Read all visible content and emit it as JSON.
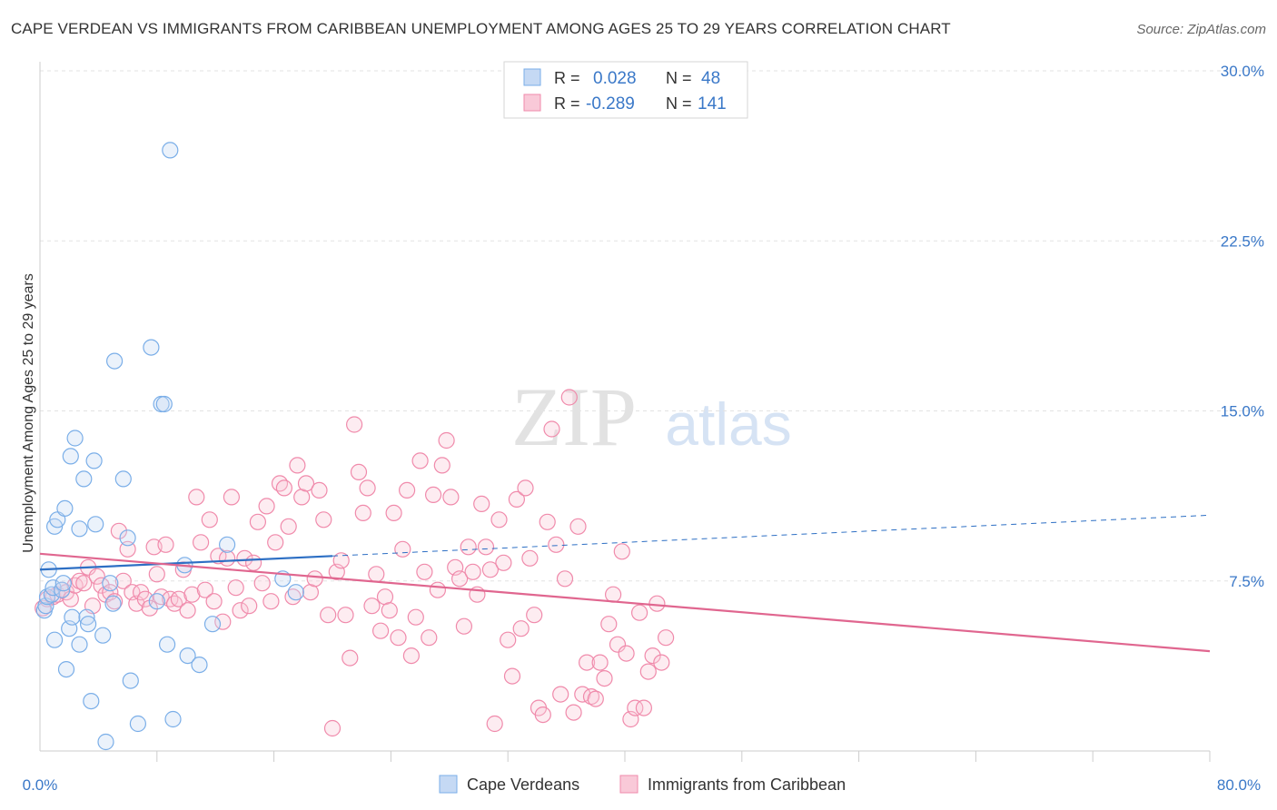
{
  "header": {
    "title": "CAPE VERDEAN VS IMMIGRANTS FROM CARIBBEAN UNEMPLOYMENT AMONG AGES 25 TO 29 YEARS CORRELATION CHART",
    "source": "Source: ZipAtlas.com"
  },
  "watermark": {
    "zip": "ZIP",
    "atlas": "atlas"
  },
  "stats": {
    "r_label": "R =",
    "n_label": "N =",
    "rows": [
      {
        "r": "0.028",
        "n": "48"
      },
      {
        "r": "-0.289",
        "n": "141"
      }
    ]
  },
  "chart_data": {
    "type": "scatter",
    "title": "CAPE VERDEAN VS IMMIGRANTS FROM CARIBBEAN UNEMPLOYMENT AMONG AGES 25 TO 29 YEARS CORRELATION CHART",
    "xlabel": "",
    "ylabel": "Unemployment Among Ages 25 to 29 years",
    "xlim": [
      0,
      80
    ],
    "ylim": [
      0,
      30
    ],
    "x_tick_labels": [
      "0.0%",
      "80.0%"
    ],
    "y_ticks": [
      7.5,
      15,
      22.5,
      30
    ],
    "y_tick_labels": [
      "7.5%",
      "15.0%",
      "22.5%",
      "30.0%"
    ],
    "grid": true,
    "legend_position": "bottom",
    "series": [
      {
        "name": "Cape Verdeans",
        "color": "#7aaee8",
        "trend": {
          "x0": 0,
          "y0": 8.0,
          "x1": 20,
          "y1": 8.6,
          "x2": 80,
          "y2": 10.4
        },
        "points": [
          [
            0.3,
            6.2
          ],
          [
            0.4,
            6.4
          ],
          [
            0.5,
            6.8
          ],
          [
            0.6,
            8.0
          ],
          [
            0.8,
            6.9
          ],
          [
            0.9,
            7.2
          ],
          [
            1.0,
            9.9
          ],
          [
            1.2,
            10.2
          ],
          [
            1.0,
            4.9
          ],
          [
            1.5,
            7.1
          ],
          [
            1.6,
            7.4
          ],
          [
            1.7,
            10.7
          ],
          [
            1.8,
            3.6
          ],
          [
            2.0,
            5.4
          ],
          [
            2.1,
            13.0
          ],
          [
            2.2,
            5.9
          ],
          [
            2.4,
            13.8
          ],
          [
            2.7,
            4.7
          ],
          [
            2.7,
            9.8
          ],
          [
            3.0,
            12.0
          ],
          [
            3.2,
            5.9
          ],
          [
            3.3,
            5.6
          ],
          [
            3.5,
            2.2
          ],
          [
            3.7,
            12.8
          ],
          [
            3.8,
            10.0
          ],
          [
            4.3,
            5.1
          ],
          [
            4.5,
            0.4
          ],
          [
            4.8,
            7.4
          ],
          [
            5.0,
            6.5
          ],
          [
            5.1,
            17.2
          ],
          [
            5.7,
            12.0
          ],
          [
            6.0,
            9.4
          ],
          [
            6.2,
            3.1
          ],
          [
            6.7,
            1.2
          ],
          [
            7.6,
            17.8
          ],
          [
            8.0,
            6.6
          ],
          [
            8.3,
            15.3
          ],
          [
            8.5,
            15.3
          ],
          [
            8.7,
            4.7
          ],
          [
            8.9,
            26.5
          ],
          [
            9.1,
            1.4
          ],
          [
            9.9,
            8.2
          ],
          [
            10.1,
            4.2
          ],
          [
            10.9,
            3.8
          ],
          [
            11.8,
            5.6
          ],
          [
            12.8,
            9.1
          ],
          [
            16.6,
            7.6
          ],
          [
            17.5,
            7.0
          ]
        ]
      },
      {
        "name": "Immigrants from Caribbean",
        "color": "#f08aab",
        "trend": {
          "x0": 0,
          "y0": 8.7,
          "x1": 80,
          "y1": 4.4
        },
        "points": [
          [
            0.2,
            6.3
          ],
          [
            0.5,
            6.7
          ],
          [
            0.9,
            6.8
          ],
          [
            1.2,
            6.9
          ],
          [
            1.5,
            7.1
          ],
          [
            1.8,
            7.0
          ],
          [
            2.1,
            6.7
          ],
          [
            2.4,
            7.3
          ],
          [
            2.7,
            7.5
          ],
          [
            3.0,
            7.4
          ],
          [
            3.3,
            8.1
          ],
          [
            3.6,
            6.4
          ],
          [
            3.9,
            7.7
          ],
          [
            4.2,
            7.3
          ],
          [
            4.5,
            6.9
          ],
          [
            4.8,
            7.0
          ],
          [
            5.1,
            6.6
          ],
          [
            5.4,
            9.7
          ],
          [
            5.7,
            7.5
          ],
          [
            6.0,
            8.9
          ],
          [
            6.3,
            7.0
          ],
          [
            6.6,
            6.5
          ],
          [
            6.9,
            7.0
          ],
          [
            7.2,
            6.7
          ],
          [
            7.5,
            6.3
          ],
          [
            7.8,
            9.0
          ],
          [
            8.0,
            7.8
          ],
          [
            8.3,
            6.8
          ],
          [
            8.6,
            9.1
          ],
          [
            8.9,
            6.7
          ],
          [
            9.2,
            6.5
          ],
          [
            9.5,
            6.7
          ],
          [
            9.8,
            8.0
          ],
          [
            10.1,
            6.2
          ],
          [
            10.4,
            6.9
          ],
          [
            10.7,
            11.2
          ],
          [
            11.0,
            9.2
          ],
          [
            11.3,
            7.1
          ],
          [
            11.6,
            10.2
          ],
          [
            11.9,
            6.6
          ],
          [
            12.2,
            8.6
          ],
          [
            12.5,
            5.7
          ],
          [
            12.8,
            8.5
          ],
          [
            13.1,
            11.2
          ],
          [
            13.4,
            7.2
          ],
          [
            13.7,
            6.2
          ],
          [
            14.0,
            8.5
          ],
          [
            14.3,
            6.4
          ],
          [
            14.6,
            8.3
          ],
          [
            14.9,
            10.1
          ],
          [
            15.2,
            7.4
          ],
          [
            15.5,
            10.8
          ],
          [
            15.8,
            6.6
          ],
          [
            16.1,
            9.2
          ],
          [
            16.4,
            11.8
          ],
          [
            16.7,
            11.6
          ],
          [
            17.0,
            9.9
          ],
          [
            17.3,
            6.8
          ],
          [
            17.6,
            12.6
          ],
          [
            17.9,
            11.2
          ],
          [
            18.2,
            11.8
          ],
          [
            18.5,
            7.0
          ],
          [
            18.8,
            7.6
          ],
          [
            19.1,
            11.5
          ],
          [
            19.4,
            10.2
          ],
          [
            19.7,
            6.0
          ],
          [
            20.0,
            1.0
          ],
          [
            20.3,
            7.9
          ],
          [
            20.6,
            8.4
          ],
          [
            20.9,
            6.0
          ],
          [
            21.2,
            4.1
          ],
          [
            21.5,
            14.4
          ],
          [
            21.8,
            12.3
          ],
          [
            22.1,
            10.5
          ],
          [
            22.4,
            11.6
          ],
          [
            22.7,
            6.4
          ],
          [
            23.0,
            7.8
          ],
          [
            23.3,
            5.3
          ],
          [
            23.6,
            6.8
          ],
          [
            23.9,
            6.2
          ],
          [
            24.2,
            10.5
          ],
          [
            24.5,
            5.0
          ],
          [
            24.8,
            8.9
          ],
          [
            25.1,
            11.5
          ],
          [
            25.4,
            4.2
          ],
          [
            25.7,
            5.9
          ],
          [
            26.0,
            12.8
          ],
          [
            26.3,
            7.9
          ],
          [
            26.6,
            5.0
          ],
          [
            26.9,
            11.3
          ],
          [
            27.2,
            7.1
          ],
          [
            27.5,
            12.6
          ],
          [
            27.8,
            13.7
          ],
          [
            28.1,
            11.2
          ],
          [
            28.4,
            8.1
          ],
          [
            28.7,
            7.6
          ],
          [
            29.0,
            5.5
          ],
          [
            29.3,
            9.0
          ],
          [
            29.6,
            7.9
          ],
          [
            29.9,
            6.9
          ],
          [
            30.2,
            10.9
          ],
          [
            30.5,
            9.0
          ],
          [
            30.8,
            8.0
          ],
          [
            31.1,
            1.2
          ],
          [
            31.4,
            10.2
          ],
          [
            31.7,
            8.3
          ],
          [
            32.0,
            4.9
          ],
          [
            32.3,
            3.3
          ],
          [
            32.6,
            11.1
          ],
          [
            32.9,
            5.4
          ],
          [
            33.2,
            11.6
          ],
          [
            33.5,
            8.5
          ],
          [
            33.8,
            6.0
          ],
          [
            34.1,
            1.9
          ],
          [
            34.4,
            1.6
          ],
          [
            34.7,
            10.1
          ],
          [
            35.0,
            14.2
          ],
          [
            35.3,
            9.1
          ],
          [
            35.6,
            2.5
          ],
          [
            35.9,
            7.6
          ],
          [
            36.2,
            15.6
          ],
          [
            36.5,
            1.7
          ],
          [
            36.8,
            9.9
          ],
          [
            37.1,
            2.5
          ],
          [
            37.4,
            3.9
          ],
          [
            37.7,
            2.4
          ],
          [
            38.0,
            2.3
          ],
          [
            38.3,
            3.9
          ],
          [
            38.6,
            3.2
          ],
          [
            38.9,
            5.6
          ],
          [
            39.2,
            6.9
          ],
          [
            39.5,
            4.7
          ],
          [
            39.8,
            8.8
          ],
          [
            40.1,
            4.3
          ],
          [
            40.4,
            1.4
          ],
          [
            40.7,
            1.9
          ],
          [
            41.0,
            6.1
          ],
          [
            41.3,
            1.9
          ],
          [
            41.6,
            3.5
          ],
          [
            41.9,
            4.2
          ],
          [
            42.2,
            6.5
          ],
          [
            42.5,
            3.9
          ],
          [
            42.8,
            5.0
          ]
        ]
      }
    ]
  }
}
